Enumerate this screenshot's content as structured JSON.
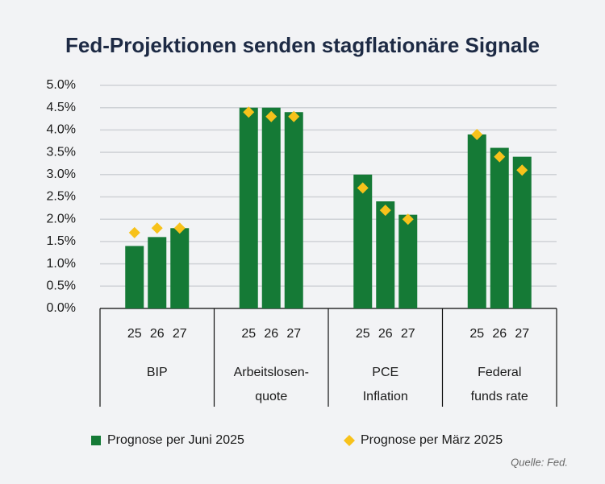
{
  "chart_data": {
    "type": "bar",
    "title": "Fed-Projektionen senden stagflationäre Signale",
    "categories": [
      "25",
      "26",
      "27",
      "25",
      "26",
      "27",
      "25",
      "26",
      "27",
      "25",
      "26",
      "27"
    ],
    "groups": [
      [
        "BIP"
      ],
      [
        "Arbeitslosen-",
        "quote"
      ],
      [
        "PCE",
        "Inflation"
      ],
      [
        "Federal",
        "funds rate"
      ]
    ],
    "series": [
      {
        "name": "Prognose per Juni 2025",
        "color": "#157a36",
        "marker": "bar",
        "values": [
          1.4,
          1.6,
          1.8,
          4.5,
          4.5,
          4.4,
          3.0,
          2.4,
          2.1,
          3.9,
          3.6,
          3.4
        ]
      },
      {
        "name": "Prognose per März 2025",
        "color": "#f7c21b",
        "marker": "diamond",
        "values": [
          1.7,
          1.8,
          1.8,
          4.4,
          4.3,
          4.3,
          2.7,
          2.2,
          2.0,
          3.9,
          3.4,
          3.1
        ]
      }
    ],
    "ylim": [
      0,
      5
    ],
    "yticks": [
      {
        "value": 0,
        "label": "0.0%"
      },
      {
        "value": 0.5,
        "label": "0.5%"
      },
      {
        "value": 1,
        "label": "1.0%"
      },
      {
        "value": 1.5,
        "label": "1.5%"
      },
      {
        "value": 2,
        "label": "2.0%"
      },
      {
        "value": 2.5,
        "label": "2.5%"
      },
      {
        "value": 3,
        "label": "3.0%"
      },
      {
        "value": 3.5,
        "label": "3.5%"
      },
      {
        "value": 4,
        "label": "4.0%"
      },
      {
        "value": 4.5,
        "label": "4.5%"
      },
      {
        "value": 5,
        "label": "5.0%"
      }
    ],
    "grid": true,
    "source": "Quelle: Fed."
  }
}
